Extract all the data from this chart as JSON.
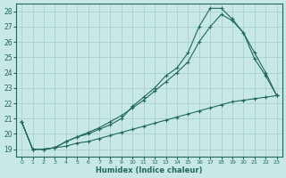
{
  "xlabel": "Humidex (Indice chaleur)",
  "background_color": "#c8e8e8",
  "grid_color": "#a8d0d0",
  "line_color": "#206858",
  "xlim": [
    -0.5,
    23.5
  ],
  "ylim": [
    18.5,
    28.5
  ],
  "yticks": [
    19,
    20,
    21,
    22,
    23,
    24,
    25,
    26,
    27,
    28
  ],
  "xticks": [
    0,
    1,
    2,
    3,
    4,
    5,
    6,
    7,
    8,
    9,
    10,
    11,
    12,
    13,
    14,
    15,
    16,
    17,
    18,
    19,
    20,
    21,
    22,
    23
  ],
  "line1_x": [
    0,
    1,
    2,
    3,
    4,
    5,
    6,
    7,
    8,
    9,
    10,
    11,
    12,
    13,
    14,
    15,
    16,
    17,
    18,
    19,
    20,
    21,
    22,
    23
  ],
  "line1_y": [
    20.8,
    19.0,
    19.0,
    19.1,
    19.2,
    19.4,
    19.5,
    19.7,
    19.9,
    20.1,
    20.3,
    20.5,
    20.7,
    20.9,
    21.1,
    21.3,
    21.5,
    21.7,
    21.9,
    22.1,
    22.2,
    22.3,
    22.4,
    22.5
  ],
  "line2_x": [
    0,
    1,
    2,
    3,
    4,
    5,
    6,
    7,
    8,
    9,
    10,
    11,
    12,
    13,
    14,
    15,
    16,
    17,
    18,
    19,
    20,
    21,
    22,
    23
  ],
  "line2_y": [
    20.8,
    19.0,
    19.0,
    19.1,
    19.5,
    19.8,
    20.1,
    20.4,
    20.8,
    21.2,
    21.7,
    22.2,
    22.8,
    23.4,
    24.0,
    24.7,
    26.0,
    27.0,
    27.8,
    27.4,
    26.6,
    25.3,
    24.0,
    22.5
  ],
  "line3_x": [
    0,
    1,
    2,
    3,
    4,
    5,
    6,
    7,
    8,
    9,
    10,
    11,
    12,
    13,
    14,
    15,
    16,
    17,
    18,
    19,
    20,
    21,
    22,
    23
  ],
  "line3_y": [
    20.8,
    19.0,
    19.0,
    19.1,
    19.5,
    19.8,
    20.0,
    20.3,
    20.6,
    21.0,
    21.8,
    22.4,
    23.0,
    23.8,
    24.3,
    25.3,
    27.0,
    28.2,
    28.2,
    27.5,
    26.6,
    24.9,
    23.8,
    22.5
  ]
}
